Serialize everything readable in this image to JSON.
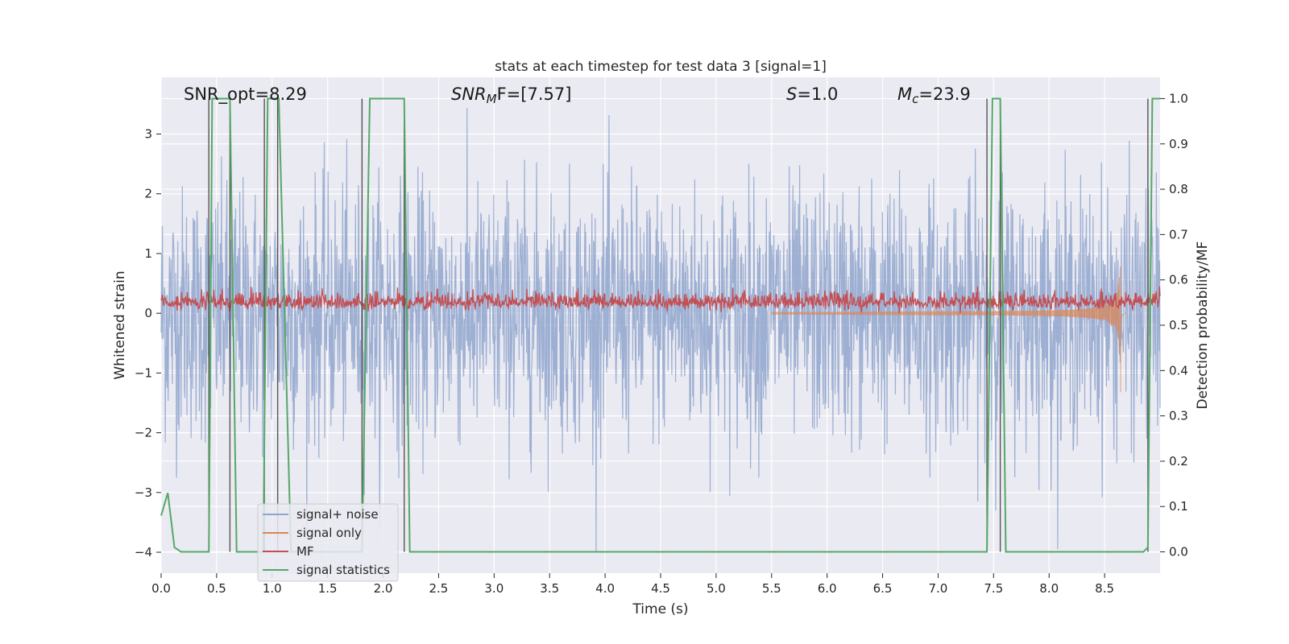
{
  "chart_data": {
    "type": "line",
    "title": "stats at each timestep for test data 3 [signal=1]",
    "xlabel": "Time (s)",
    "ylabel": "Whitened strain",
    "y2label": "Detection probability/MF",
    "xlim": [
      0,
      9.0
    ],
    "ylim": [
      -4.35,
      3.95
    ],
    "y2lim": [
      -0.047,
      1.047
    ],
    "x_ticks": [
      "0.0",
      "0.5",
      "1.0",
      "1.5",
      "2.0",
      "2.5",
      "3.0",
      "3.5",
      "4.0",
      "4.5",
      "5.0",
      "5.5",
      "6.0",
      "6.5",
      "7.0",
      "7.5",
      "8.0",
      "8.5"
    ],
    "y_ticks": [
      "−4",
      "−3",
      "−2",
      "−1",
      "0",
      "1",
      "2",
      "3"
    ],
    "y2_ticks": [
      "0.0",
      "0.1",
      "0.2",
      "0.3",
      "0.4",
      "0.5",
      "0.6",
      "0.7",
      "0.8",
      "0.9",
      "1.0"
    ],
    "grid": true,
    "legend_position": "lower-left",
    "annotations": {
      "snr_opt": "SNR_opt=8.29",
      "snr_mf_sym": "SNR",
      "snr_mf_sub": "M",
      "snr_mf_rest": "F=[7.57]",
      "s_sym": "S",
      "s_rest": "=1.0",
      "mc_sym": "M",
      "mc_sub": "c",
      "mc_rest": "=23.9"
    },
    "series": [
      {
        "name": "signal+ noise",
        "color": "#8fa5cc",
        "description_values": "noise band ~ ±1.3 dense, peaks to ±3.6"
      },
      {
        "name": "signal only",
        "color": "#dd8452",
        "chirp_end_time": 8.65,
        "chirp_peak_amplitude": 1.7
      },
      {
        "name": "MF",
        "color": "#c44e52",
        "y_range": [
          0.0,
          0.45
        ]
      },
      {
        "name": "signal statistics",
        "color": "#55a868",
        "x": [
          0.0,
          0.06,
          0.12,
          0.18,
          0.43,
          0.46,
          0.62,
          0.68,
          0.92,
          0.96,
          1.02,
          1.06,
          1.17,
          1.81,
          1.88,
          2.19,
          2.24,
          7.44,
          7.49,
          7.56,
          7.61,
          8.85,
          8.89,
          8.93,
          9.0
        ],
        "values": [
          0.08,
          0.13,
          0.01,
          0.0,
          0.0,
          1.0,
          1.0,
          0.0,
          0.0,
          1.0,
          1.0,
          1.0,
          0.0,
          0.0,
          1.0,
          1.0,
          0.0,
          0.0,
          1.0,
          1.0,
          0.0,
          0.0,
          0.01,
          1.0,
          1.0
        ]
      }
    ],
    "vlines": [
      0.43,
      0.62,
      0.93,
      1.05,
      1.81,
      2.19,
      7.44,
      7.56,
      8.89
    ]
  },
  "legend": {
    "items": [
      "signal+ noise",
      "signal only",
      "MF",
      "signal statistics"
    ]
  }
}
